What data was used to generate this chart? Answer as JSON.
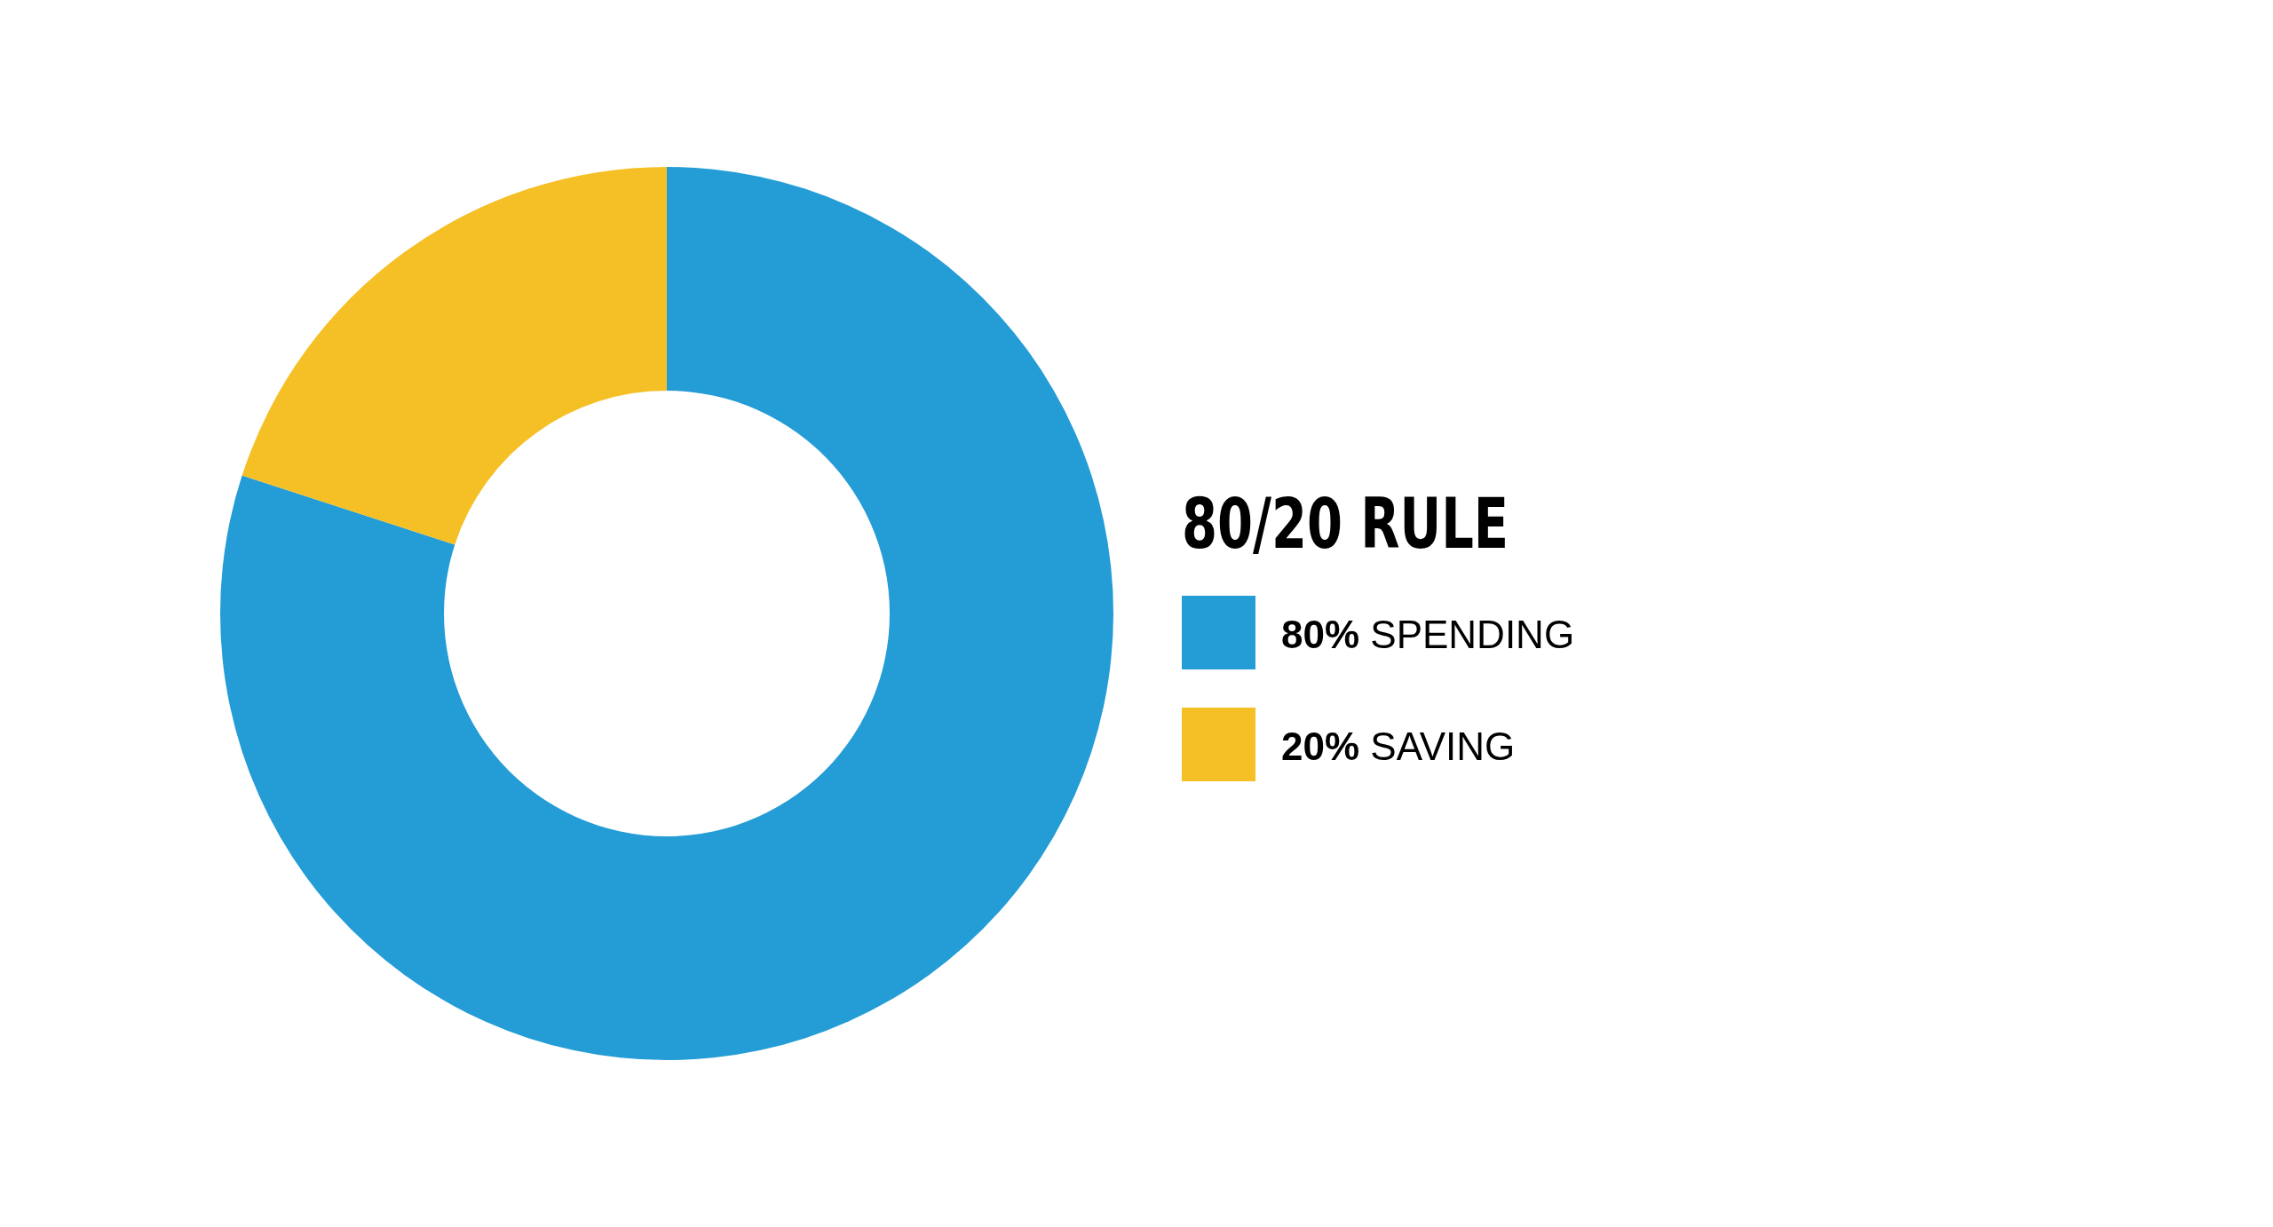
{
  "chart_data": {
    "type": "donut",
    "legend_title": "80/20 RULE",
    "categories": [
      "80% SPENDING",
      "20% SAVING"
    ],
    "values": [
      80,
      20
    ],
    "colors": [
      "#249cd6",
      "#f5c026"
    ],
    "legend": "right"
  }
}
